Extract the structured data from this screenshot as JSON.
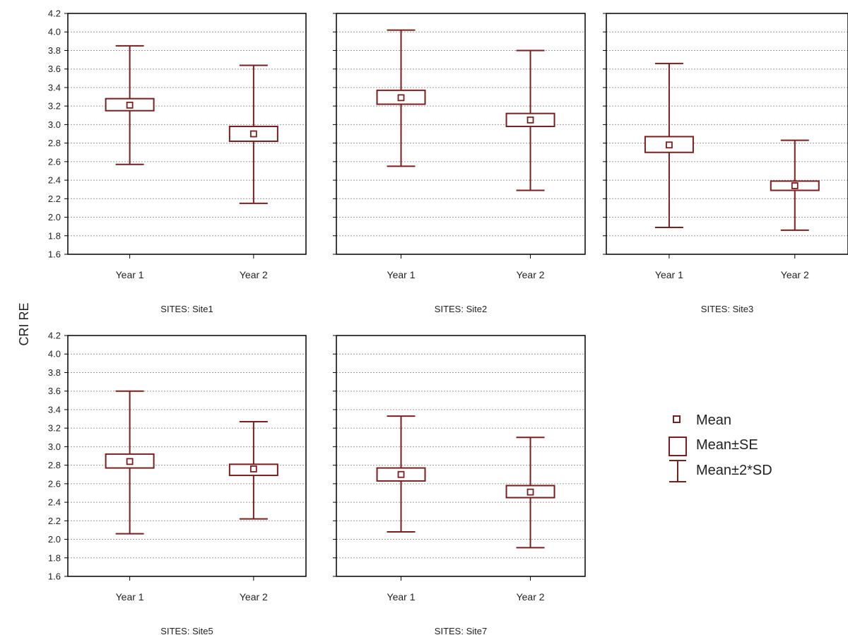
{
  "chart_data": {
    "type": "box",
    "ylabel": "CRI RE",
    "yticks": [
      1.6,
      1.8,
      2.0,
      2.2,
      2.4,
      2.6,
      2.8,
      3.0,
      3.2,
      3.4,
      3.6,
      3.8,
      4.0,
      4.2
    ],
    "ylim": [
      1.6,
      4.2
    ],
    "grid": true,
    "categories": [
      "Year 1",
      "Year 2"
    ],
    "color": "#7a1f1f",
    "legend": {
      "placement": "right",
      "items": [
        {
          "symbol": "point",
          "label": "Mean"
        },
        {
          "symbol": "box",
          "label": "Mean±SE"
        },
        {
          "symbol": "whisker",
          "label": "Mean±2*SD"
        }
      ]
    },
    "panels": [
      {
        "title": "SITES: Site1",
        "groups": [
          {
            "category": "Year 1",
            "mean": 3.21,
            "se_low": 3.15,
            "se_high": 3.28,
            "sd2_low": 2.57,
            "sd2_high": 3.85
          },
          {
            "category": "Year 2",
            "mean": 2.9,
            "se_low": 2.82,
            "se_high": 2.98,
            "sd2_low": 2.15,
            "sd2_high": 3.64
          }
        ]
      },
      {
        "title": "SITES: Site2",
        "groups": [
          {
            "category": "Year 1",
            "mean": 3.29,
            "se_low": 3.22,
            "se_high": 3.37,
            "sd2_low": 2.55,
            "sd2_high": 4.02
          },
          {
            "category": "Year 2",
            "mean": 3.05,
            "se_low": 2.98,
            "se_high": 3.12,
            "sd2_low": 2.29,
            "sd2_high": 3.8
          }
        ]
      },
      {
        "title": "SITES: Site3",
        "groups": [
          {
            "category": "Year 1",
            "mean": 2.78,
            "se_low": 2.7,
            "se_high": 2.87,
            "sd2_low": 1.89,
            "sd2_high": 3.66
          },
          {
            "category": "Year 2",
            "mean": 2.34,
            "se_low": 2.29,
            "se_high": 2.39,
            "sd2_low": 1.86,
            "sd2_high": 2.83
          }
        ]
      },
      {
        "title": "SITES: Site5",
        "groups": [
          {
            "category": "Year 1",
            "mean": 2.84,
            "se_low": 2.77,
            "se_high": 2.92,
            "sd2_low": 2.06,
            "sd2_high": 3.6
          },
          {
            "category": "Year 2",
            "mean": 2.76,
            "se_low": 2.69,
            "se_high": 2.81,
            "sd2_low": 2.22,
            "sd2_high": 3.27
          }
        ]
      },
      {
        "title": "SITES: Site7",
        "groups": [
          {
            "category": "Year 1",
            "mean": 2.7,
            "se_low": 2.63,
            "se_high": 2.77,
            "sd2_low": 2.08,
            "sd2_high": 3.33
          },
          {
            "category": "Year 2",
            "mean": 2.51,
            "se_low": 2.45,
            "se_high": 2.58,
            "sd2_low": 1.91,
            "sd2_high": 3.1
          }
        ]
      }
    ]
  }
}
